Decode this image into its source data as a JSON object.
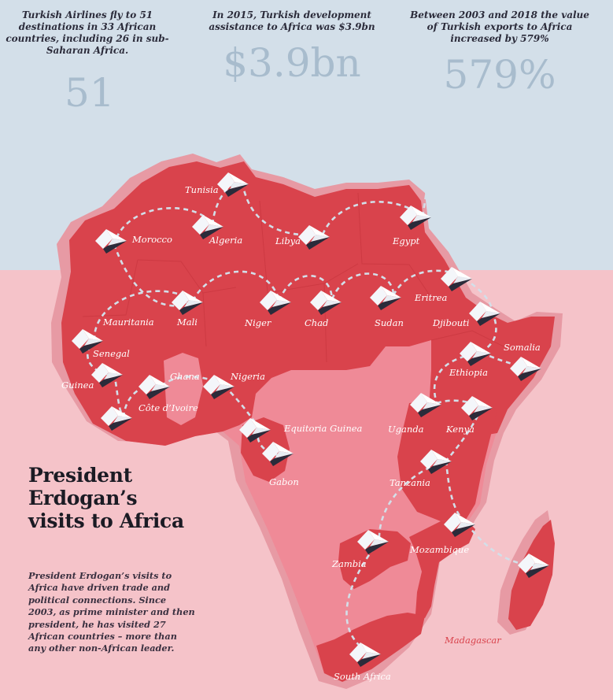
{
  "stats": [
    {
      "caption": "Turkish Airlines fly to 51 destinations in 33 African countries, including 26 in sub-Saharan Africa.",
      "value": "51"
    },
    {
      "caption": "In 2015, Turkish development assistance to Africa was $3.9bn",
      "value": "$3.9bn"
    },
    {
      "caption": "Between 2003 and 2018 the value of Turkish exports to Africa increased by 579%",
      "value": "579%"
    }
  ],
  "title": "President Erdogan’s visits to Africa",
  "description": "President Erdogan’s visits to Africa have driven trade and political connections. Since 2003, as prime minister and then president, he has visited 27 African countries – more than any other non-African leader.",
  "countries": {
    "tunisia": "Tunisia",
    "morocco": "Morocco",
    "algeria": "Algeria",
    "libya": "Libya",
    "egypt": "Egypt",
    "mauritania": "Mauritania",
    "mali": "Mali",
    "niger": "Niger",
    "chad": "Chad",
    "sudan": "Sudan",
    "eritrea": "Eritrea",
    "djibouti": "Djibouti",
    "somalia": "Somalia",
    "ethiopia": "Ethiopia",
    "senegal": "Senegal",
    "guinea": "Guinea",
    "ghana": "Ghana",
    "nigeria": "Nigeria",
    "cote_divoire": "Côte d’Ivoire",
    "equatorial_guinea": "Equitoria Guinea",
    "gabon": "Gabon",
    "uganda": "Uganda",
    "kenya": "Kenya",
    "tanzania": "Tanzania",
    "zambia": "Zambia",
    "mozambique": "Mozambique",
    "madagascar": "Madagascar",
    "south_africa": "South Africa"
  },
  "colors": {
    "sky": "#d3dfe9",
    "pink_background": "#f5c3c9",
    "visited_country": "#d9434c",
    "unvisited_country": "#ef8a97",
    "shadow": "#e79aa4",
    "stat_value": "#a8bccd",
    "route_line": "#d3dfe9"
  },
  "icons": {
    "visit_marker": "paper-plane-icon"
  }
}
